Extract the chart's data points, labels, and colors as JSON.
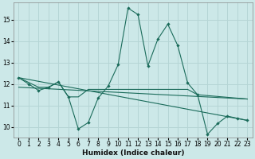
{
  "xlabel": "Humidex (Indice chaleur)",
  "background_color": "#cce8e8",
  "grid_color": "#b5d5d5",
  "line_color": "#1a6b5a",
  "xlim": [
    -0.5,
    23.5
  ],
  "ylim": [
    9.5,
    15.8
  ],
  "xticks": [
    0,
    1,
    2,
    3,
    4,
    5,
    6,
    7,
    8,
    9,
    10,
    11,
    12,
    13,
    14,
    15,
    16,
    17,
    18,
    19,
    20,
    21,
    22,
    23
  ],
  "yticks": [
    10,
    11,
    12,
    13,
    14,
    15
  ],
  "lines": [
    {
      "x": [
        0,
        1,
        2,
        3,
        4,
        5,
        6,
        7,
        8,
        9,
        10,
        11,
        12,
        13,
        14,
        15,
        16,
        17,
        18,
        19,
        20,
        21,
        22,
        23
      ],
      "y": [
        12.3,
        12.0,
        11.7,
        11.85,
        12.1,
        11.4,
        9.9,
        10.2,
        11.35,
        11.9,
        12.9,
        15.55,
        15.25,
        12.85,
        14.1,
        14.8,
        13.8,
        12.05,
        11.5,
        9.65,
        10.15,
        10.5,
        10.4,
        10.3
      ],
      "marker": true
    },
    {
      "x": [
        0,
        2,
        3,
        4,
        5,
        6,
        7,
        8,
        17,
        18,
        23
      ],
      "y": [
        12.3,
        11.85,
        11.85,
        12.1,
        11.4,
        11.4,
        11.75,
        11.75,
        11.75,
        11.5,
        11.3
      ],
      "marker": false
    },
    {
      "x": [
        0,
        23
      ],
      "y": [
        11.85,
        11.3
      ],
      "marker": false
    },
    {
      "comment": "diagonal line from 0 ~12.3 to 23 ~10.3",
      "x": [
        0,
        23
      ],
      "y": [
        12.3,
        10.3
      ],
      "marker": false
    }
  ]
}
